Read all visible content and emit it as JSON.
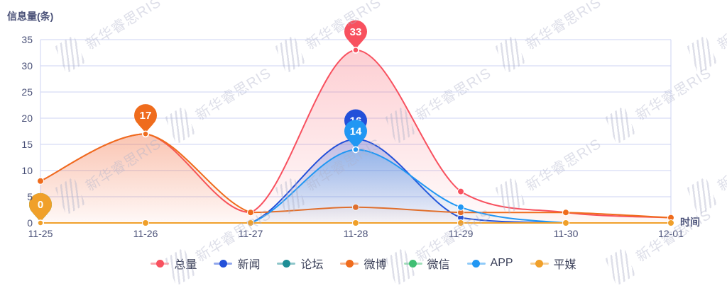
{
  "header": {
    "title": "信息量(条)"
  },
  "axis": {
    "x_label": "时间",
    "x_categories": [
      "11-25",
      "11-26",
      "11-27",
      "11-28",
      "11-29",
      "11-30",
      "12-01"
    ],
    "y_ticks": [
      0,
      5,
      10,
      15,
      20,
      25,
      30,
      35
    ]
  },
  "watermark": {
    "text": "新华睿思RIS"
  },
  "colors": {
    "grid_line": "#ccd3f3",
    "axis_text": "#4a5178",
    "legend_text": "#3b4059",
    "pin_text": "#ffffff"
  },
  "chart_data": {
    "type": "line",
    "title": "信息量(条)",
    "xlabel": "时间",
    "ylabel": "信息量(条)",
    "x": [
      "11-25",
      "11-26",
      "11-27",
      "11-28",
      "11-29",
      "11-30",
      "12-01"
    ],
    "ylim": [
      0,
      35
    ],
    "grid": true,
    "smooth": true,
    "legend_position": "bottom",
    "series": [
      {
        "name": "总量",
        "color": "#f8515f",
        "area_opacity": 0.28,
        "values": [
          8,
          17,
          2,
          33,
          6,
          2,
          1
        ],
        "max_marker": {
          "value": 33,
          "x": "11-28",
          "index": 3
        }
      },
      {
        "name": "新闻",
        "color": "#2350d9",
        "area_opacity": 0.28,
        "values": [
          0,
          0,
          0,
          16,
          1,
          0,
          0
        ],
        "max_marker": {
          "value": 16,
          "x": "11-28",
          "index": 3
        }
      },
      {
        "name": "论坛",
        "color": "#1e8e96",
        "area_opacity": 0,
        "values": [
          0,
          0,
          0,
          0,
          0,
          0,
          0
        ],
        "max_marker": {
          "value": 0,
          "x": "11-25",
          "index": 0
        }
      },
      {
        "name": "微博",
        "color": "#ef6c1d",
        "area_opacity": 0.26,
        "values": [
          8,
          17,
          2,
          3,
          2,
          2,
          1
        ],
        "max_marker": {
          "value": 17,
          "x": "11-26",
          "index": 1
        }
      },
      {
        "name": "微信",
        "color": "#3fbf73",
        "area_opacity": 0,
        "values": [
          0,
          0,
          0,
          0,
          0,
          0,
          0
        ],
        "max_marker": {
          "value": 0,
          "x": "11-25",
          "index": 0
        }
      },
      {
        "name": "APP",
        "color": "#2197f3",
        "area_opacity": 0.3,
        "values": [
          0,
          0,
          0,
          14,
          3,
          0,
          0
        ],
        "max_marker": {
          "value": 14,
          "x": "11-28",
          "index": 3
        }
      },
      {
        "name": "平媒",
        "color": "#f0a02a",
        "area_opacity": 0,
        "values": [
          0,
          0,
          0,
          0,
          0,
          0,
          0
        ],
        "max_marker": {
          "value": 0,
          "x": "11-25",
          "index": 0
        }
      }
    ]
  }
}
